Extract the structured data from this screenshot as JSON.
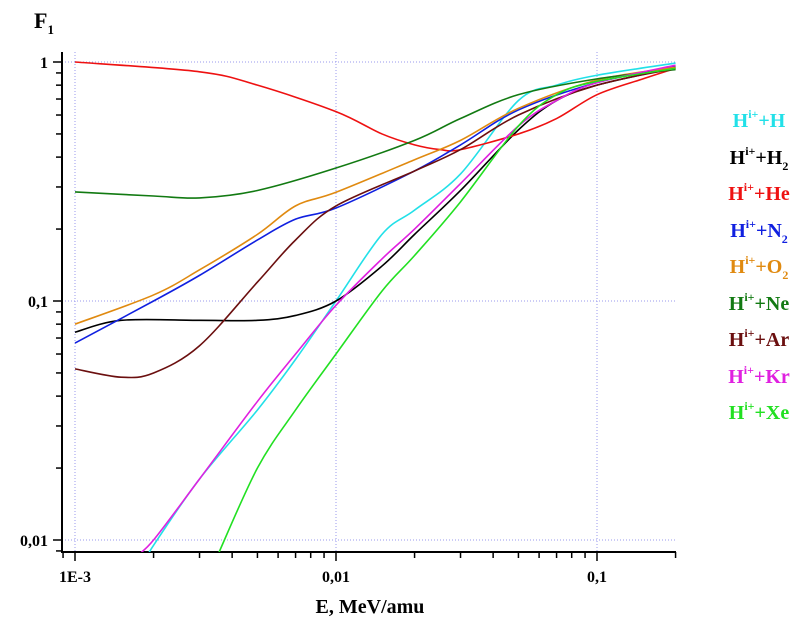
{
  "chart_data": {
    "type": "line",
    "title": "",
    "xlabel": "E, MeV/amu",
    "ylabel": {
      "base": "F",
      "sub": "1"
    },
    "xscale": "log",
    "yscale": "log",
    "xlim": [
      0.00089,
      0.2
    ],
    "ylim": [
      0.0088,
      1.07
    ],
    "grid": true,
    "legend_placement": "right",
    "xticks": [
      {
        "v": 0.001,
        "label": "1E-3"
      },
      {
        "v": 0.01,
        "label": "0,01"
      },
      {
        "v": 0.1,
        "label": "0,1"
      }
    ],
    "yticks": [
      {
        "v": 1,
        "label": "1"
      },
      {
        "v": 0.1,
        "label": "0,1"
      },
      {
        "v": 0.01,
        "label": "0,01"
      }
    ],
    "series": [
      {
        "name": "H+H",
        "label": {
          "base": "H",
          "sup": "i+",
          "rest": "+H",
          "sub": ""
        },
        "color": "#22e0e8",
        "x": [
          0.0019,
          0.002,
          0.003,
          0.005,
          0.007,
          0.01,
          0.015,
          0.02,
          0.03,
          0.05,
          0.07,
          0.1,
          0.2
        ],
        "y": [
          0.0085,
          0.0095,
          0.018,
          0.035,
          0.057,
          0.1,
          0.19,
          0.24,
          0.34,
          0.69,
          0.8,
          0.88,
          0.99
        ]
      },
      {
        "name": "H+H2",
        "label": {
          "base": "H",
          "sup": "i+",
          "rest": "+H",
          "sub": "2"
        },
        "color": "#000000",
        "x": [
          0.001,
          0.0015,
          0.003,
          0.005,
          0.007,
          0.01,
          0.015,
          0.02,
          0.03,
          0.05,
          0.07,
          0.1,
          0.2
        ],
        "y": [
          0.074,
          0.083,
          0.083,
          0.083,
          0.087,
          0.1,
          0.14,
          0.19,
          0.29,
          0.52,
          0.69,
          0.8,
          0.95
        ]
      },
      {
        "name": "H+He",
        "label": {
          "base": "H",
          "sup": "i+",
          "rest": "+He",
          "sub": ""
        },
        "color": "#ee1111",
        "x": [
          0.001,
          0.003,
          0.005,
          0.01,
          0.015,
          0.02,
          0.025,
          0.03,
          0.05,
          0.07,
          0.1,
          0.15,
          0.2
        ],
        "y": [
          1.0,
          0.91,
          0.8,
          0.62,
          0.5,
          0.45,
          0.43,
          0.43,
          0.5,
          0.58,
          0.73,
          0.85,
          0.94
        ]
      },
      {
        "name": "H+N2",
        "label": {
          "base": "H",
          "sup": "i+",
          "rest": "+N",
          "sub": "2"
        },
        "color": "#1020e0",
        "x": [
          0.001,
          0.002,
          0.003,
          0.005,
          0.007,
          0.01,
          0.02,
          0.03,
          0.05,
          0.1,
          0.2
        ],
        "y": [
          0.0667,
          0.1,
          0.128,
          0.18,
          0.22,
          0.245,
          0.35,
          0.45,
          0.63,
          0.82,
          0.96
        ]
      },
      {
        "name": "H+O2",
        "label": {
          "base": "H",
          "sup": "i+",
          "rest": "+O",
          "sub": "2"
        },
        "color": "#e08a10",
        "x": [
          0.001,
          0.002,
          0.003,
          0.005,
          0.007,
          0.01,
          0.02,
          0.03,
          0.05,
          0.1,
          0.2
        ],
        "y": [
          0.08,
          0.106,
          0.135,
          0.19,
          0.25,
          0.285,
          0.39,
          0.47,
          0.64,
          0.84,
          0.95
        ]
      },
      {
        "name": "H+Ne",
        "label": {
          "base": "H",
          "sup": "i+",
          "rest": "+Ne",
          "sub": ""
        },
        "color": "#127a12",
        "x": [
          0.001,
          0.002,
          0.003,
          0.005,
          0.01,
          0.02,
          0.03,
          0.05,
          0.1,
          0.2
        ],
        "y": [
          0.286,
          0.275,
          0.27,
          0.29,
          0.36,
          0.47,
          0.58,
          0.73,
          0.85,
          0.93
        ]
      },
      {
        "name": "H+Ar",
        "label": {
          "base": "H",
          "sup": "i+",
          "rest": "+Ar",
          "sub": ""
        },
        "color": "#6b0f0f",
        "x": [
          0.001,
          0.0015,
          0.002,
          0.003,
          0.005,
          0.007,
          0.01,
          0.02,
          0.03,
          0.05,
          0.1,
          0.2
        ],
        "y": [
          0.052,
          0.048,
          0.05,
          0.065,
          0.12,
          0.18,
          0.25,
          0.35,
          0.43,
          0.6,
          0.8,
          0.94
        ]
      },
      {
        "name": "H+Kr",
        "label": {
          "base": "H",
          "sup": "i+",
          "rest": "+Kr",
          "sub": ""
        },
        "color": "#e020e0",
        "x": [
          0.0017,
          0.002,
          0.003,
          0.005,
          0.007,
          0.01,
          0.015,
          0.02,
          0.03,
          0.05,
          0.07,
          0.1,
          0.2
        ],
        "y": [
          0.0085,
          0.01,
          0.018,
          0.038,
          0.06,
          0.096,
          0.15,
          0.2,
          0.31,
          0.54,
          0.69,
          0.82,
          0.97
        ]
      },
      {
        "name": "H+Xe",
        "label": {
          "base": "H",
          "sup": "i+",
          "rest": "+Xe",
          "sub": ""
        },
        "color": "#22e022",
        "x": [
          0.0035,
          0.005,
          0.007,
          0.01,
          0.015,
          0.02,
          0.03,
          0.05,
          0.07,
          0.1,
          0.2
        ],
        "y": [
          0.0085,
          0.02,
          0.035,
          0.06,
          0.11,
          0.155,
          0.26,
          0.54,
          0.73,
          0.83,
          0.94
        ]
      }
    ]
  }
}
